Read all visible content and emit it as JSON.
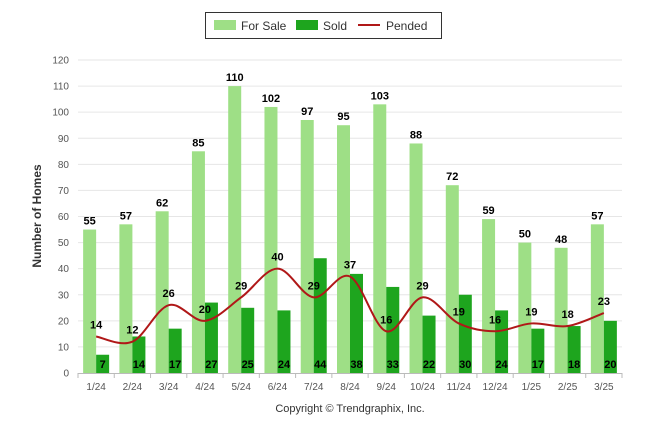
{
  "chart_data": {
    "type": "bar",
    "categories": [
      "1/24",
      "2/24",
      "3/24",
      "4/24",
      "5/24",
      "6/24",
      "7/24",
      "8/24",
      "9/24",
      "10/24",
      "11/24",
      "12/24",
      "1/25",
      "2/25",
      "3/25"
    ],
    "series": [
      {
        "name": "For Sale",
        "type": "bar",
        "color": "#9edf86",
        "values": [
          55,
          57,
          62,
          85,
          110,
          102,
          97,
          95,
          103,
          88,
          72,
          59,
          50,
          48,
          57
        ]
      },
      {
        "name": "Sold",
        "type": "bar",
        "color": "#1ea51e",
        "values": [
          7,
          14,
          17,
          27,
          25,
          24,
          44,
          38,
          33,
          22,
          30,
          24,
          17,
          18,
          20
        ]
      },
      {
        "name": "Pended",
        "type": "line",
        "color": "#b01818",
        "values": [
          14,
          12,
          26,
          20,
          29,
          40,
          29,
          37,
          16,
          29,
          19,
          16,
          19,
          18,
          23
        ]
      }
    ],
    "ylabel": "Number of Homes",
    "ylim": [
      0,
      120
    ],
    "yticks": [
      0,
      10,
      20,
      30,
      40,
      50,
      60,
      70,
      80,
      90,
      100,
      110,
      120
    ],
    "grid": true,
    "legend": "top-center"
  },
  "copyright": "Copyright © Trendgraphix, Inc."
}
